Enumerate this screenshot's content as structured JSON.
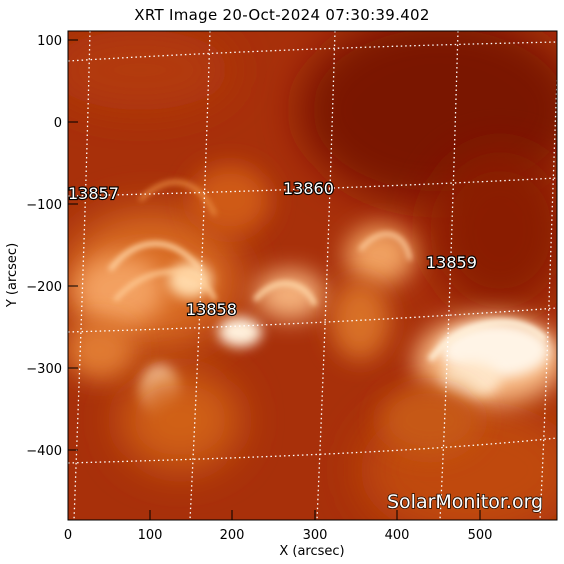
{
  "title": "XRT Image 20-Oct-2024 07:30:39.402",
  "x_axis": {
    "label": "X (arcsec)",
    "ticks": [
      "0",
      "100",
      "200",
      "300",
      "400",
      "500"
    ],
    "range": [
      0,
      600
    ]
  },
  "y_axis": {
    "label": "Y (arcsec)",
    "ticks": [
      "100",
      "0",
      "−100",
      "−200",
      "−300",
      "−400"
    ],
    "range": [
      -490,
      110
    ]
  },
  "active_regions": [
    {
      "id": "13857",
      "label": "13857"
    },
    {
      "id": "13860",
      "label": "13860"
    },
    {
      "id": "13859",
      "label": "13859"
    },
    {
      "id": "13858",
      "label": "13858"
    }
  ],
  "watermark": "SolarMonitor.org",
  "colors": {
    "background": "#a82a00",
    "dark_region": "#7c1200",
    "bright_loops": "#ffe0b0",
    "grid": "#ffffff"
  }
}
